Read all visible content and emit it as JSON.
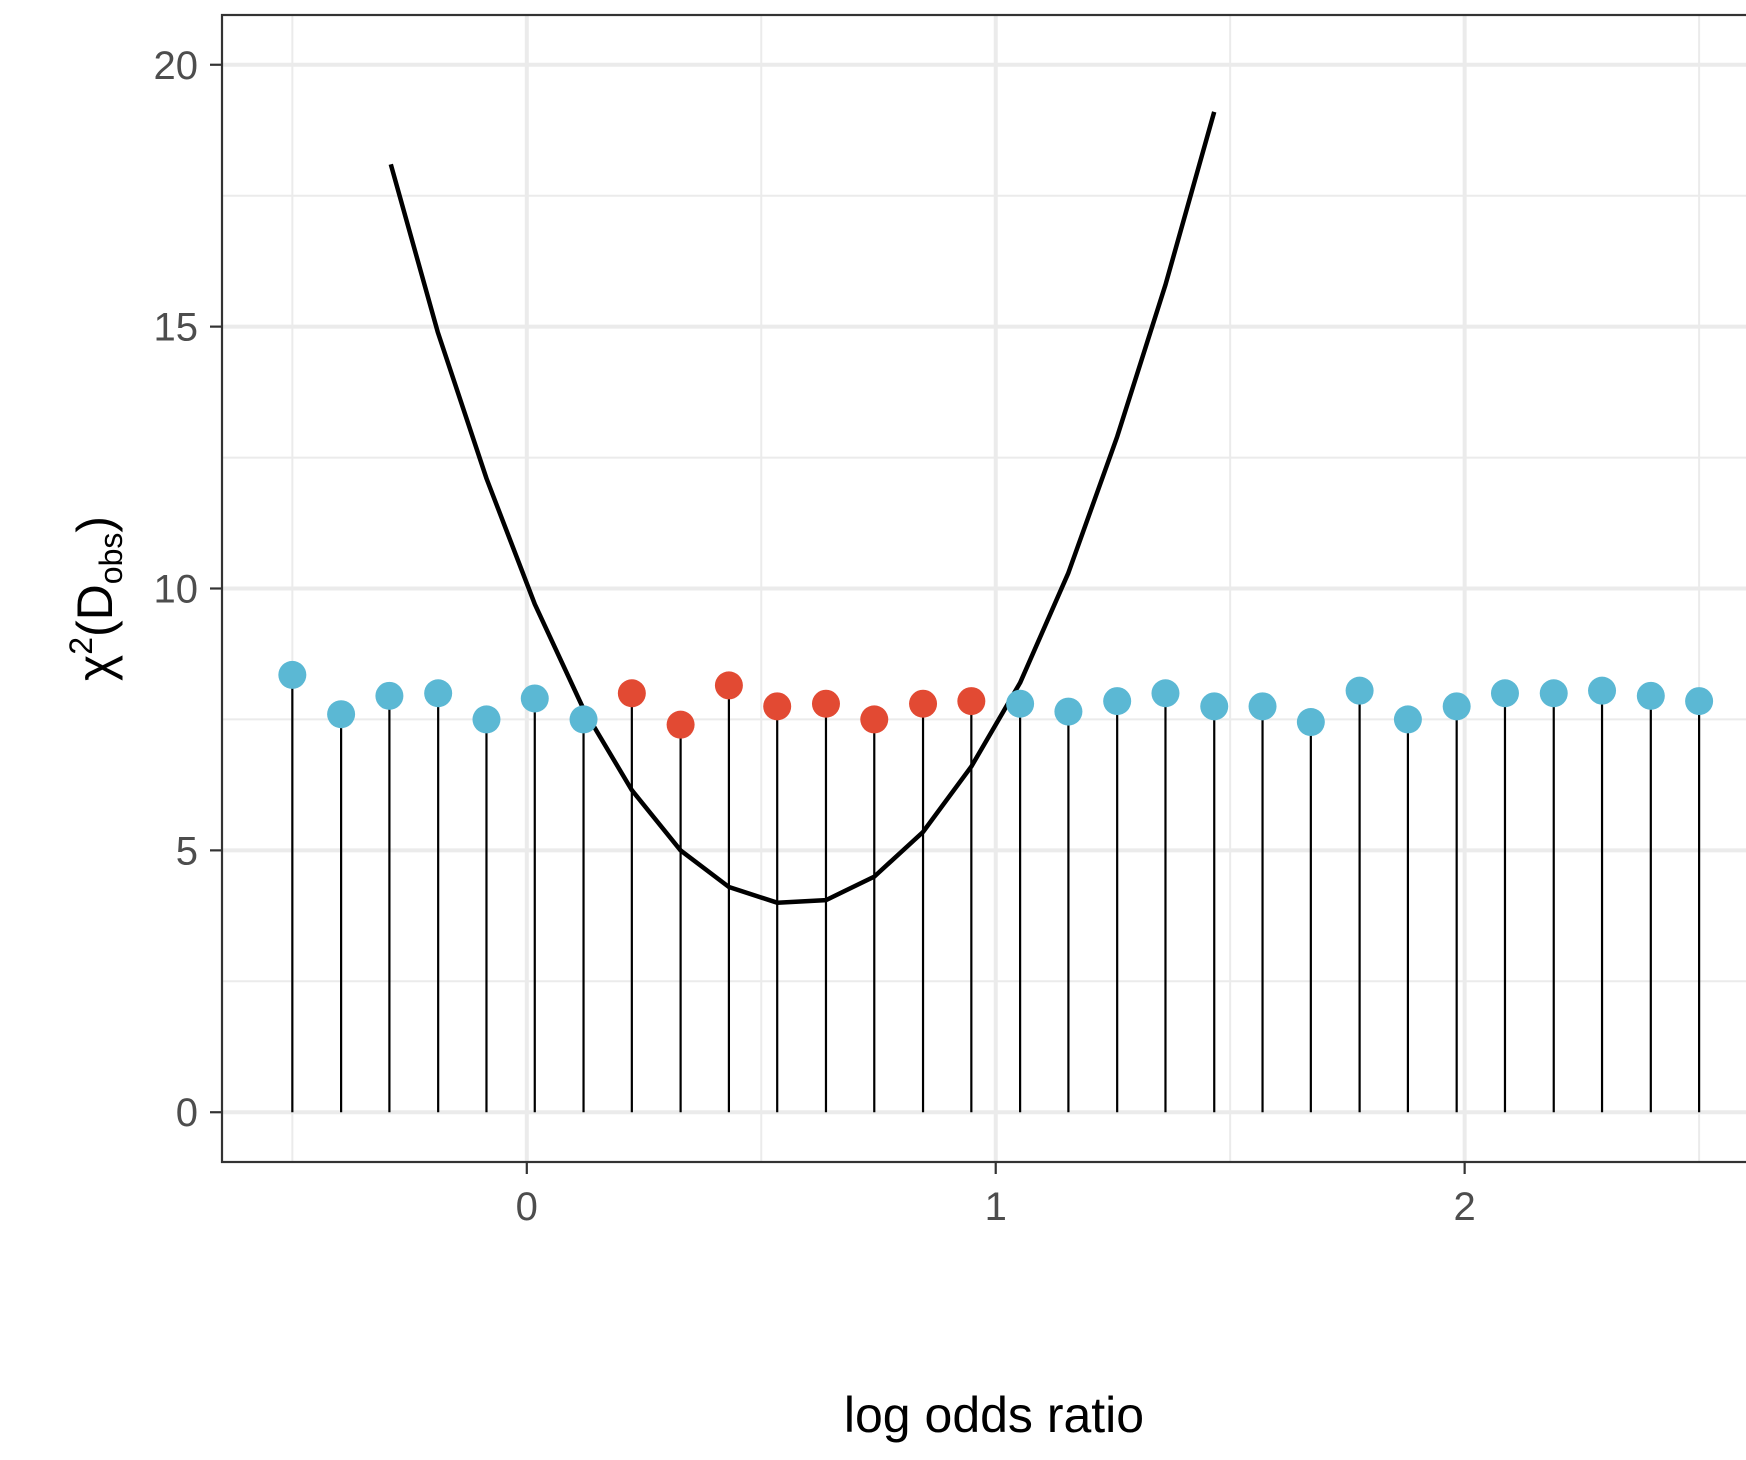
{
  "chart_data": {
    "type": "scatter",
    "title": "",
    "xlabel": "log odds ratio",
    "ylabel": {
      "base": "χ",
      "sup": "2",
      "open": "(D",
      "sub": "obs",
      "close": ")"
    },
    "xlim": [
      -0.65,
      2.6
    ],
    "ylim": [
      -0.95,
      20.95
    ],
    "x_ticks": [
      0,
      1,
      2
    ],
    "y_ticks": [
      0,
      5,
      10,
      15,
      20
    ],
    "grid": true,
    "colors": {
      "in_range": "#E24A33",
      "out_of_range": "#5BB8D4",
      "curve": "#000000",
      "grid": "#EBEBEB",
      "panel_border": "#333333"
    },
    "points": [
      {
        "x": -0.5,
        "y": 8.35,
        "group": "out_of_range"
      },
      {
        "x": -0.396,
        "y": 7.6,
        "group": "out_of_range"
      },
      {
        "x": -0.293,
        "y": 7.95,
        "group": "out_of_range"
      },
      {
        "x": -0.189,
        "y": 8.0,
        "group": "out_of_range"
      },
      {
        "x": -0.086,
        "y": 7.5,
        "group": "out_of_range"
      },
      {
        "x": 0.017,
        "y": 7.9,
        "group": "out_of_range"
      },
      {
        "x": 0.121,
        "y": 7.5,
        "group": "out_of_range"
      },
      {
        "x": 0.224,
        "y": 8.0,
        "group": "in_range"
      },
      {
        "x": 0.328,
        "y": 7.4,
        "group": "in_range"
      },
      {
        "x": 0.431,
        "y": 8.15,
        "group": "in_range"
      },
      {
        "x": 0.534,
        "y": 7.75,
        "group": "in_range"
      },
      {
        "x": 0.638,
        "y": 7.8,
        "group": "in_range"
      },
      {
        "x": 0.741,
        "y": 7.5,
        "group": "in_range"
      },
      {
        "x": 0.845,
        "y": 7.8,
        "group": "in_range"
      },
      {
        "x": 0.948,
        "y": 7.85,
        "group": "in_range"
      },
      {
        "x": 1.052,
        "y": 7.8,
        "group": "out_of_range"
      },
      {
        "x": 1.155,
        "y": 7.65,
        "group": "out_of_range"
      },
      {
        "x": 1.259,
        "y": 7.85,
        "group": "out_of_range"
      },
      {
        "x": 1.362,
        "y": 8.0,
        "group": "out_of_range"
      },
      {
        "x": 1.466,
        "y": 7.75,
        "group": "out_of_range"
      },
      {
        "x": 1.569,
        "y": 7.75,
        "group": "out_of_range"
      },
      {
        "x": 1.672,
        "y": 7.45,
        "group": "out_of_range"
      },
      {
        "x": 1.776,
        "y": 8.05,
        "group": "out_of_range"
      },
      {
        "x": 1.879,
        "y": 7.5,
        "group": "out_of_range"
      },
      {
        "x": 1.983,
        "y": 7.75,
        "group": "out_of_range"
      },
      {
        "x": 2.086,
        "y": 8.0,
        "group": "out_of_range"
      },
      {
        "x": 2.19,
        "y": 8.0,
        "group": "out_of_range"
      },
      {
        "x": 2.293,
        "y": 8.05,
        "group": "out_of_range"
      },
      {
        "x": 2.397,
        "y": 7.95,
        "group": "out_of_range"
      },
      {
        "x": 2.5,
        "y": 7.85,
        "group": "out_of_range"
      }
    ],
    "curve": {
      "x": [
        -0.29,
        -0.19,
        -0.086,
        0.017,
        0.121,
        0.224,
        0.328,
        0.431,
        0.534,
        0.638,
        0.741,
        0.845,
        0.948,
        1.052,
        1.155,
        1.259,
        1.362,
        1.466
      ],
      "y": [
        18.1,
        14.9,
        12.1,
        9.7,
        7.7,
        6.15,
        5.0,
        4.3,
        4.0,
        4.05,
        4.5,
        5.35,
        6.6,
        8.2,
        10.3,
        12.9,
        15.8,
        19.1
      ]
    }
  }
}
